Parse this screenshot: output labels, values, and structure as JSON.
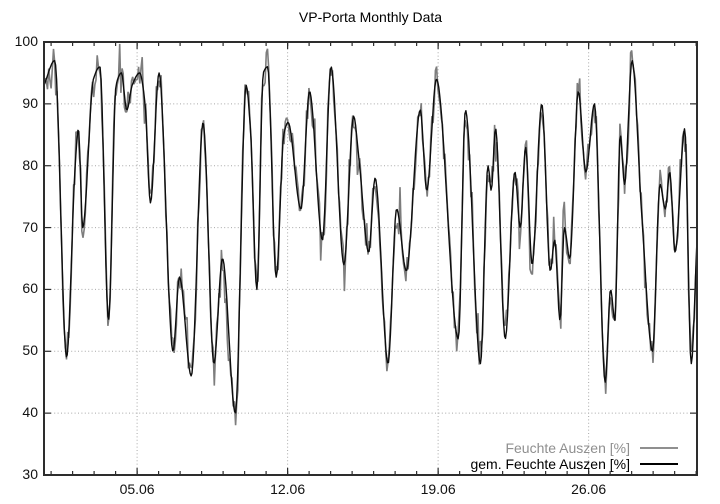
{
  "title": "VP-Porta Monthly Data",
  "legend": {
    "position": "bottom-right-inside",
    "entries": [
      {
        "label": "Feuchte Auszen [%]",
        "color": "#8f8f8f"
      },
      {
        "label": "gem. Feuchte Auszen [%]",
        "color": "#000000"
      }
    ]
  },
  "chart_data": {
    "type": "line",
    "title": "VP-Porta Monthly Data",
    "xlabel": "",
    "ylabel": "",
    "x_axis": {
      "unit": "date (DD.MM)",
      "range_days": [
        0,
        30.37
      ],
      "major_ticks": [
        {
          "label": "05.06",
          "day": 4.33
        },
        {
          "label": "12.06",
          "day": 11.33
        },
        {
          "label": "19.06",
          "day": 18.33
        },
        {
          "label": "26.06",
          "day": 25.33
        }
      ],
      "first_minor_tick_day": 0.33,
      "minor_tick_interval_days": 1,
      "minor_tick_count": 31,
      "grid": "dotted-at-major-ticks"
    },
    "y_axis": {
      "unit": "%",
      "range": [
        30,
        100
      ],
      "ticks": [
        30,
        40,
        50,
        60,
        70,
        80,
        90,
        100
      ],
      "tick_labels": [
        "30",
        "40",
        "50",
        "60",
        "70",
        "80",
        "90",
        "100"
      ],
      "grid": "dotted-at-ticks-inside-border"
    },
    "plot": {
      "background": "#ffffff",
      "border_color": "#2d2d2d",
      "grid_color": "#a8a8a8",
      "tick_color": "#2d2d2d"
    },
    "series": [
      {
        "name": "Feuchte Auszen [%]",
        "color": "#7d7d7d",
        "line_width": 1.6,
        "style": "raw sensor trace = smoothed series plus high-frequency noise",
        "noise_amplitude_pct": 2.4,
        "noise_spike_amplitude_pct": 4.5,
        "noise_spike_probability": 0.22,
        "noise_seed": 605,
        "sample_step_days": 0.055
      },
      {
        "name": "gem. Feuchte Auszen [%]",
        "color": "#0d0d0d",
        "line_width": 1.4,
        "style": "smoothed mean",
        "sample_step_days": 0.045,
        "anchors_day_percent": [
          [
            0.0,
            93
          ],
          [
            0.5,
            97
          ],
          [
            1.05,
            49
          ],
          [
            1.45,
            80
          ],
          [
            1.6,
            86
          ],
          [
            1.8,
            70
          ],
          [
            2.3,
            94
          ],
          [
            2.6,
            96
          ],
          [
            3.0,
            55
          ],
          [
            3.35,
            93
          ],
          [
            3.6,
            95
          ],
          [
            3.85,
            89
          ],
          [
            4.1,
            93
          ],
          [
            4.45,
            95
          ],
          [
            4.7,
            90
          ],
          [
            4.95,
            74
          ],
          [
            5.35,
            95
          ],
          [
            6.0,
            50
          ],
          [
            6.3,
            62
          ],
          [
            6.85,
            46
          ],
          [
            7.4,
            87
          ],
          [
            7.9,
            48
          ],
          [
            8.3,
            65
          ],
          [
            8.9,
            40
          ],
          [
            9.4,
            93
          ],
          [
            9.6,
            86
          ],
          [
            9.9,
            60
          ],
          [
            10.2,
            95
          ],
          [
            10.4,
            96
          ],
          [
            10.8,
            62
          ],
          [
            11.15,
            85
          ],
          [
            11.35,
            87
          ],
          [
            11.95,
            73
          ],
          [
            12.35,
            92
          ],
          [
            12.95,
            68
          ],
          [
            13.35,
            96
          ],
          [
            13.95,
            64
          ],
          [
            14.4,
            88
          ],
          [
            14.65,
            81
          ],
          [
            15.1,
            66
          ],
          [
            15.4,
            78
          ],
          [
            16.0,
            48
          ],
          [
            16.4,
            73
          ],
          [
            16.85,
            63
          ],
          [
            17.5,
            89
          ],
          [
            17.8,
            76
          ],
          [
            18.25,
            94
          ],
          [
            19.27,
            52
          ],
          [
            19.6,
            89
          ],
          [
            20.3,
            48
          ],
          [
            20.65,
            80
          ],
          [
            20.8,
            76
          ],
          [
            21.0,
            86
          ],
          [
            21.45,
            52
          ],
          [
            21.9,
            79
          ],
          [
            22.15,
            70
          ],
          [
            22.4,
            83
          ],
          [
            22.7,
            64
          ],
          [
            23.15,
            90
          ],
          [
            23.55,
            63
          ],
          [
            23.75,
            68
          ],
          [
            24.0,
            55
          ],
          [
            24.2,
            70
          ],
          [
            24.45,
            65
          ],
          [
            24.85,
            92
          ],
          [
            25.2,
            79
          ],
          [
            25.6,
            90
          ],
          [
            26.1,
            45
          ],
          [
            26.35,
            60
          ],
          [
            26.55,
            55
          ],
          [
            26.8,
            85
          ],
          [
            27.0,
            77
          ],
          [
            27.35,
            97
          ],
          [
            27.8,
            72
          ],
          [
            28.3,
            50
          ],
          [
            28.65,
            77
          ],
          [
            28.9,
            73
          ],
          [
            29.1,
            79
          ],
          [
            29.35,
            66
          ],
          [
            29.8,
            86
          ],
          [
            30.1,
            48
          ],
          [
            30.37,
            68
          ]
        ]
      }
    ]
  }
}
